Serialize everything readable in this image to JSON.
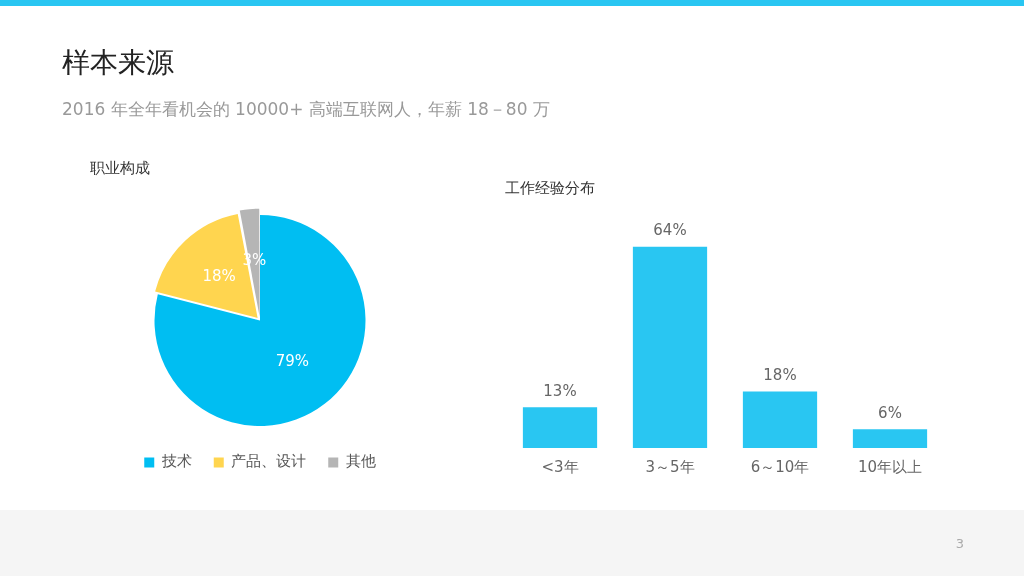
{
  "chart_data": [
    {
      "type": "pie",
      "title": "职业构成",
      "annotations": [
        "样本来源",
        "2016 年全年看机会的 10000+ 高端互联网人，年薪 18－80 万"
      ],
      "categories": [
        "技术",
        "产品、设计",
        "其他"
      ],
      "values": [
        79,
        18,
        3
      ],
      "colors": [
        "#00bef2",
        "#ffd54f",
        "#b5b5b5"
      ],
      "value_labels": [
        "79%",
        "18%",
        "3%"
      ],
      "legend": "bottom"
    },
    {
      "type": "bar",
      "title": "工作经验分布",
      "annotations": [
        "3"
      ],
      "categories": [
        "<3年",
        "3～5年",
        "6～10年",
        "10年以上"
      ],
      "values": [
        13,
        64,
        18,
        6
      ],
      "color": "#29c6f2",
      "value_labels": [
        "13%",
        "64%",
        "18%",
        "6%"
      ],
      "legend": false
    }
  ]
}
